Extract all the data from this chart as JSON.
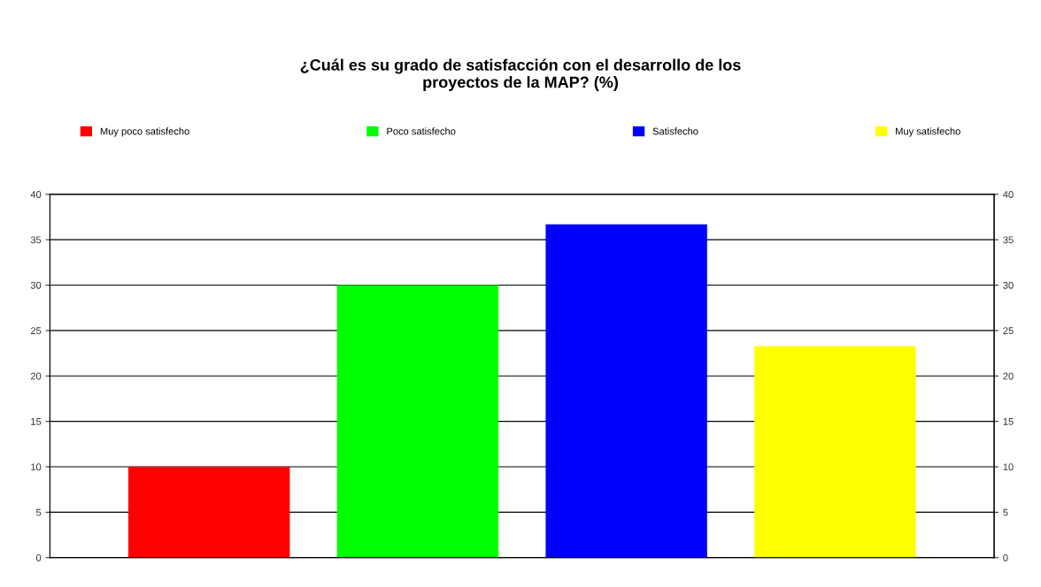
{
  "chart_data": {
    "type": "bar",
    "title": "¿Cuál es su grado de satisfacción con el desarrollo de los\nproyectos de la MAP? (%)",
    "categories": [
      null
    ],
    "series": [
      {
        "name": "Muy poco satisfecho",
        "color": "#ff0000",
        "values": [
          10
        ]
      },
      {
        "name": "Poco satisfecho",
        "color": "#00ff00",
        "values": [
          30
        ]
      },
      {
        "name": "Satisfecho",
        "color": "#0000ff",
        "values": [
          36.7
        ]
      },
      {
        "name": "Muy satisfecho",
        "color": "#ffff00",
        "values": [
          23.3
        ]
      }
    ],
    "ylim": [
      0,
      40
    ],
    "yticks": [
      0,
      5,
      10,
      15,
      20,
      25,
      30,
      35,
      40
    ],
    "y2lim": [
      0,
      40
    ],
    "y2ticks": [
      0,
      5,
      10,
      15,
      20,
      25,
      30,
      35,
      40
    ],
    "grid": "y",
    "legend": "top"
  }
}
